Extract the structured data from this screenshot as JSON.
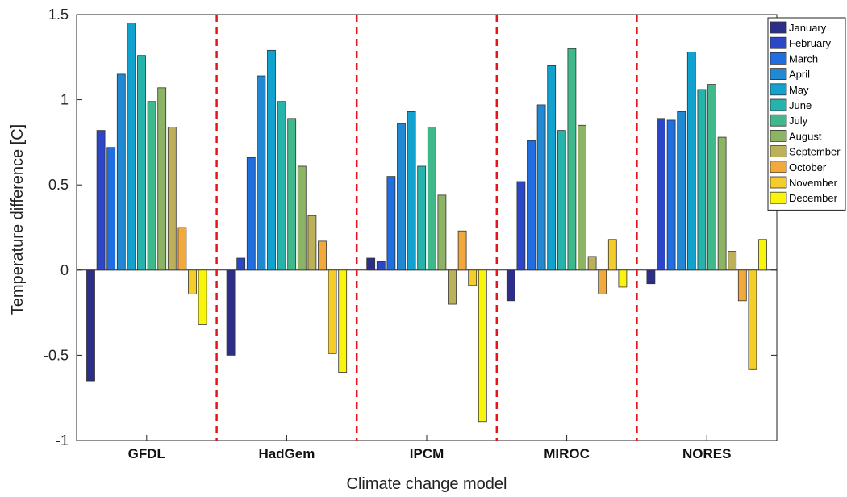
{
  "chart_data": {
    "type": "bar",
    "title": "",
    "xlabel": "Climate change model",
    "ylabel": "Temperature difference [C]",
    "ylim": [
      -1,
      1.5
    ],
    "yticks": [
      -1,
      -0.5,
      0,
      0.5,
      1,
      1.5
    ],
    "ytick_labels": [
      "-1",
      "-0.5",
      "0",
      "0.5",
      "1",
      "1.5"
    ],
    "grid": false,
    "legend_position": "top-right",
    "separators": "red dashed vertical lines between models",
    "categories": [
      "GFDL",
      "HadGem",
      "IPCM",
      "MIROC",
      "NORES"
    ],
    "series": [
      {
        "name": "January",
        "color": "#2d2d8a",
        "values": [
          -0.65,
          -0.5,
          0.07,
          -0.18,
          -0.08
        ]
      },
      {
        "name": "February",
        "color": "#2b47c8",
        "values": [
          0.82,
          0.07,
          0.05,
          0.52,
          0.89
        ]
      },
      {
        "name": "March",
        "color": "#1f6fe0",
        "values": [
          0.72,
          0.66,
          0.55,
          0.76,
          0.88
        ]
      },
      {
        "name": "April",
        "color": "#2189d4",
        "values": [
          1.15,
          1.14,
          0.86,
          0.97,
          0.93
        ]
      },
      {
        "name": "May",
        "color": "#12a2cf",
        "values": [
          1.45,
          1.29,
          0.93,
          1.2,
          1.28
        ]
      },
      {
        "name": "June",
        "color": "#25b3ac",
        "values": [
          1.26,
          0.99,
          0.61,
          0.82,
          1.06
        ]
      },
      {
        "name": "July",
        "color": "#3fb98c",
        "values": [
          0.99,
          0.89,
          0.84,
          1.3,
          1.09
        ]
      },
      {
        "name": "August",
        "color": "#8db465",
        "values": [
          1.07,
          0.61,
          0.44,
          0.85,
          0.78
        ]
      },
      {
        "name": "September",
        "color": "#bdb05a",
        "values": [
          0.84,
          0.32,
          -0.2,
          0.08,
          0.11
        ]
      },
      {
        "name": "October",
        "color": "#f2a93b",
        "values": [
          0.25,
          0.17,
          0.23,
          -0.14,
          -0.18
        ]
      },
      {
        "name": "November",
        "color": "#f5cd2a",
        "values": [
          -0.14,
          -0.49,
          -0.09,
          0.18,
          -0.58
        ]
      },
      {
        "name": "December",
        "color": "#f8f40c",
        "values": [
          -0.32,
          -0.6,
          -0.89,
          -0.1,
          0.18
        ]
      }
    ]
  }
}
